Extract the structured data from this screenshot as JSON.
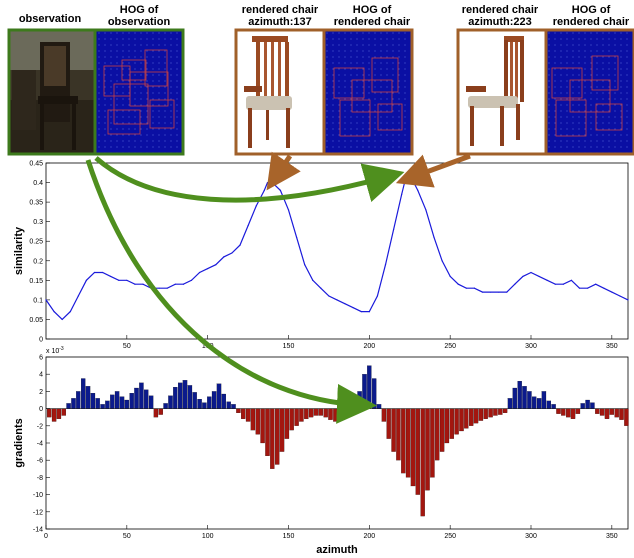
{
  "header": {
    "panels": [
      {
        "title": [
          "observation"
        ],
        "frame": "#3d7a1c"
      },
      {
        "title": [
          "HOG of",
          "observation"
        ],
        "frame": "#3d7a1c"
      },
      {
        "title": [
          "rendered chair",
          "azimuth:137"
        ],
        "frame": "#a0602a"
      },
      {
        "title": [
          "HOG of",
          "rendered chair"
        ],
        "frame": "#a0602a"
      },
      {
        "title": [
          "rendered chair",
          "azimuth:223"
        ],
        "frame": "#a0602a"
      },
      {
        "title": [
          "HOG of",
          "rendered chair"
        ],
        "frame": "#a0602a"
      }
    ]
  },
  "chart_data": [
    {
      "type": "line",
      "ylabel": "similarity",
      "xlim": [
        0,
        360
      ],
      "ylim": [
        0,
        0.45
      ],
      "xticks": [
        "50",
        "100",
        "150",
        "200",
        "250",
        "300",
        "350"
      ],
      "yticks": [
        "0",
        "0.05",
        "0.1",
        "0.15",
        "0.2",
        "0.25",
        "0.3",
        "0.35",
        "0.4",
        "0.45"
      ],
      "color": "#1a1adb",
      "series": [
        {
          "x": [
            0,
            5,
            10,
            15,
            20,
            25,
            30,
            35,
            40,
            45,
            50,
            55,
            60,
            65,
            70,
            75,
            80,
            85,
            90,
            95,
            100,
            105,
            110,
            115,
            120,
            125,
            130,
            135,
            137,
            140,
            145,
            150,
            155,
            160,
            165,
            170,
            175,
            180,
            185,
            190,
            195,
            200,
            205,
            210,
            215,
            220,
            223,
            225,
            230,
            235,
            240,
            245,
            250,
            255,
            260,
            265,
            270,
            275,
            280,
            285,
            290,
            295,
            300,
            305,
            310,
            315,
            320,
            325,
            330,
            335,
            340,
            345,
            350,
            355,
            360
          ],
          "values": [
            0.1,
            0.07,
            0.05,
            0.07,
            0.11,
            0.15,
            0.17,
            0.17,
            0.16,
            0.15,
            0.15,
            0.14,
            0.14,
            0.13,
            0.13,
            0.13,
            0.14,
            0.14,
            0.15,
            0.17,
            0.18,
            0.19,
            0.21,
            0.22,
            0.24,
            0.29,
            0.34,
            0.38,
            0.4,
            0.4,
            0.38,
            0.33,
            0.26,
            0.19,
            0.15,
            0.13,
            0.11,
            0.1,
            0.09,
            0.08,
            0.07,
            0.07,
            0.11,
            0.19,
            0.28,
            0.37,
            0.42,
            0.42,
            0.38,
            0.33,
            0.26,
            0.2,
            0.16,
            0.14,
            0.13,
            0.13,
            0.12,
            0.12,
            0.12,
            0.12,
            0.14,
            0.16,
            0.17,
            0.16,
            0.15,
            0.14,
            0.14,
            0.15,
            0.13,
            0.13,
            0.14,
            0.13,
            0.12,
            0.11,
            0.1
          ]
        }
      ]
    },
    {
      "type": "bar",
      "ylabel": "gradients",
      "xlabel": "azimuth",
      "scale_note": "x 10",
      "scale_exp": "-3",
      "xlim": [
        0,
        360
      ],
      "ylim": [
        -14,
        6
      ],
      "xticks": [
        "0",
        "50",
        "100",
        "150",
        "200",
        "250",
        "300",
        "350"
      ],
      "yticks": [
        "6",
        "4",
        "2",
        "0",
        "-2",
        "-4",
        "-6",
        "-8",
        "-10",
        "-12",
        "-14"
      ],
      "positive_color": "#0b1a8c",
      "negative_color": "#a3160f",
      "series": [
        {
          "x": [
            2,
            5,
            8,
            11,
            14,
            17,
            20,
            23,
            26,
            29,
            32,
            35,
            38,
            41,
            44,
            47,
            50,
            53,
            56,
            59,
            62,
            65,
            68,
            71,
            74,
            77,
            80,
            83,
            86,
            89,
            92,
            95,
            98,
            101,
            104,
            107,
            110,
            113,
            116,
            119,
            122,
            125,
            128,
            131,
            134,
            137,
            140,
            143,
            146,
            149,
            152,
            155,
            158,
            161,
            164,
            167,
            170,
            173,
            176,
            179,
            182,
            185,
            188,
            191,
            194,
            197,
            200,
            203,
            206,
            209,
            212,
            215,
            218,
            221,
            224,
            227,
            230,
            233,
            236,
            239,
            242,
            245,
            248,
            251,
            254,
            257,
            260,
            263,
            266,
            269,
            272,
            275,
            278,
            281,
            284,
            287,
            290,
            293,
            296,
            299,
            302,
            305,
            308,
            311,
            314,
            317,
            320,
            323,
            326,
            329,
            332,
            335,
            338,
            341,
            344,
            347,
            350,
            353,
            356,
            359
          ],
          "values": [
            -1.0,
            -1.5,
            -1.2,
            -0.8,
            0.6,
            1.2,
            2.0,
            3.5,
            2.6,
            1.8,
            1.2,
            0.5,
            0.9,
            1.6,
            2.0,
            1.4,
            1.0,
            1.8,
            2.4,
            3.0,
            2.2,
            1.5,
            -1.0,
            -0.7,
            0.6,
            1.5,
            2.5,
            3.0,
            3.3,
            2.7,
            1.9,
            1.1,
            0.7,
            1.4,
            2.0,
            2.9,
            1.7,
            0.8,
            0.5,
            -0.5,
            -1.2,
            -1.5,
            -2.5,
            -3.0,
            -4.0,
            -5.5,
            -7.0,
            -6.5,
            -5.0,
            -3.5,
            -2.5,
            -2.0,
            -1.5,
            -1.2,
            -1.0,
            -0.8,
            -0.8,
            -1.0,
            -1.3,
            -1.5,
            -1.2,
            -1.0,
            -0.6,
            0.6,
            2.0,
            4.0,
            5.0,
            3.5,
            0.5,
            -1.5,
            -3.5,
            -5.0,
            -6.0,
            -7.5,
            -8.0,
            -9.0,
            -10.0,
            -12.5,
            -9.5,
            -8.0,
            -6.0,
            -5.0,
            -4.0,
            -3.5,
            -3.0,
            -2.6,
            -2.3,
            -2.0,
            -1.7,
            -1.4,
            -1.2,
            -1.0,
            -0.8,
            -0.7,
            -0.5,
            1.2,
            2.4,
            3.2,
            2.6,
            2.0,
            1.4,
            1.2,
            2.0,
            0.9,
            0.5,
            -0.6,
            -0.8,
            -1.0,
            -1.2,
            -0.6,
            0.6,
            1.0,
            0.7,
            -0.6,
            -0.8,
            -1.2,
            -0.7,
            -1.0,
            -1.3,
            -2.0
          ]
        }
      ]
    }
  ]
}
